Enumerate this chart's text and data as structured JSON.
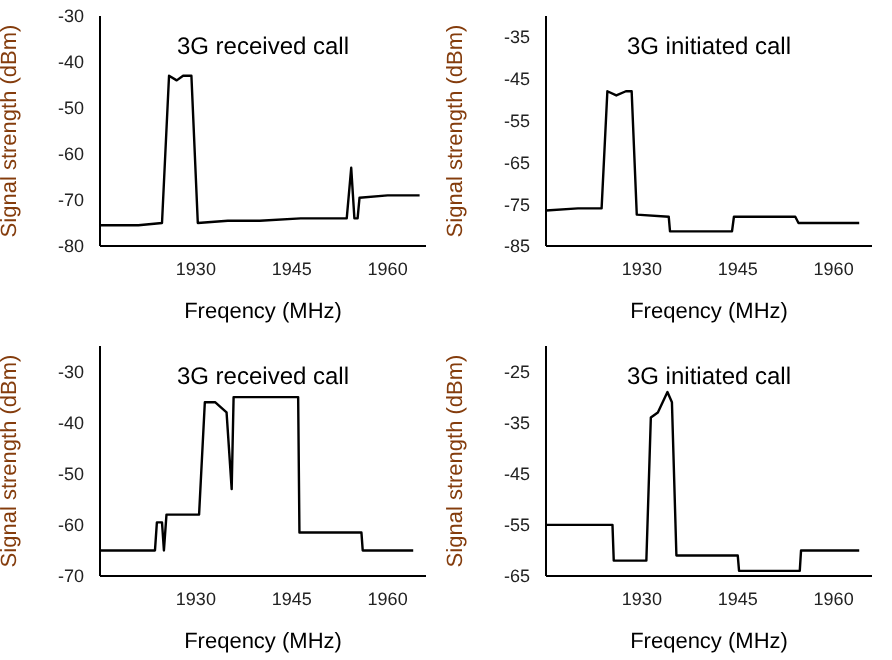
{
  "chart_data": [
    {
      "type": "line",
      "title": "3G received call",
      "xlabel": "Freqency (MHz)",
      "ylabel": "Signal strength (dBm)",
      "color": "#000000",
      "xlim": [
        1915,
        1966
      ],
      "xticks": [
        1930,
        1945,
        1960
      ],
      "ylim": [
        -80,
        -30
      ],
      "yticks": [
        -80,
        -70,
        -60,
        -50,
        -40,
        -30
      ],
      "x": [
        1915,
        1918,
        1921,
        1924.7,
        1925.8,
        1927,
        1928,
        1929.3,
        1930.3,
        1935,
        1940,
        1946.4,
        1952.7,
        1953.6,
        1954.3,
        1954.8,
        1955.3,
        1955.6,
        1960,
        1965
      ],
      "values": [
        -75.5,
        -75.5,
        -75.5,
        -75,
        -43,
        -44,
        -43,
        -43,
        -75,
        -74.5,
        -74.5,
        -74,
        -74,
        -74,
        -63,
        -74,
        -74,
        -69.5,
        -69,
        -69
      ]
    },
    {
      "type": "line",
      "title": "3G initiated call",
      "xlabel": "Freqency (MHz)",
      "ylabel": "Signal strength (dBm)",
      "color": "#000000",
      "xlim": [
        1915,
        1966
      ],
      "xticks": [
        1930,
        1945,
        1960
      ],
      "ylim": [
        -85,
        -30
      ],
      "yticks": [
        -85,
        -75,
        -65,
        -55,
        -45,
        -35
      ],
      "x": [
        1915,
        1920,
        1923.7,
        1924.6,
        1926,
        1927.5,
        1928.4,
        1929.2,
        1934.2,
        1934.4,
        1944.1,
        1944.4,
        1954,
        1954.5,
        1964
      ],
      "values": [
        -76.5,
        -76,
        -76,
        -48,
        -49,
        -48,
        -48,
        -77.5,
        -78,
        -81.5,
        -81.5,
        -78,
        -78,
        -79.5,
        -79.5
      ]
    },
    {
      "type": "line",
      "title": "3G received call",
      "xlabel": "Freqency (MHz)",
      "ylabel": "Signal strength (dBm)",
      "color": "#000000",
      "xlim": [
        1915,
        1966
      ],
      "xticks": [
        1930,
        1945,
        1960
      ],
      "ylim": [
        -70,
        -25
      ],
      "yticks": [
        -70,
        -60,
        -50,
        -40,
        -30
      ],
      "x": [
        1915,
        1923.6,
        1923.9,
        1924.7,
        1925,
        1925.4,
        1930.5,
        1931.4,
        1933,
        1934.8,
        1935.6,
        1935.9,
        1946,
        1946.2,
        1955.9,
        1956.1,
        1964
      ],
      "values": [
        -65,
        -65,
        -59.5,
        -59.5,
        -65,
        -58,
        -58,
        -36,
        -36,
        -38,
        -53,
        -35,
        -35,
        -61.5,
        -61.5,
        -65,
        -65
      ]
    },
    {
      "type": "line",
      "title": "3G initiated call",
      "xlabel": "Freqency (MHz)",
      "ylabel": "Signal strength (dBm)",
      "color": "#000000",
      "xlim": [
        1915,
        1966
      ],
      "xticks": [
        1930,
        1945,
        1960
      ],
      "ylim": [
        -65,
        -20
      ],
      "yticks": [
        -65,
        -55,
        -45,
        -35,
        -25
      ],
      "x": [
        1915,
        1925.4,
        1925.6,
        1930.7,
        1931.4,
        1932.5,
        1934,
        1934.7,
        1935.4,
        1945,
        1945.2,
        1954.7,
        1954.9,
        1964
      ],
      "values": [
        -55,
        -55,
        -62,
        -62,
        -34,
        -33,
        -29,
        -31,
        -61,
        -61,
        -64,
        -64,
        -60,
        -60
      ]
    }
  ]
}
